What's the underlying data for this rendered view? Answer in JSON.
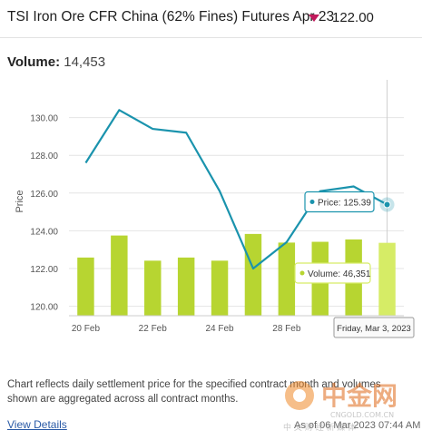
{
  "header": {
    "title": "TSI Iron Ore CFR China (62% Fines) Futures Apr 23",
    "price": "122.00",
    "change_direction_icon": "triangle-down-icon",
    "down_color": "#c0195b"
  },
  "volume": {
    "label": "Volume:",
    "value": "14,453"
  },
  "chart_data": {
    "type": "line+bar",
    "ylabel": "Price",
    "ylim": [
      119.5,
      132.0
    ],
    "yticks": [
      "120.00",
      "122.00",
      "124.00",
      "126.00",
      "128.00",
      "130.00"
    ],
    "x": [
      "Feb 20",
      "Feb 21",
      "Feb 22",
      "Feb 23",
      "Feb 24",
      "Feb 27",
      "Feb 28",
      "Mar 1",
      "Mar 2",
      "Mar 3"
    ],
    "xtick_labels": [
      "20 Feb",
      "22 Feb",
      "24 Feb",
      "28 Feb"
    ],
    "price_series": {
      "name": "Price",
      "values": [
        127.6,
        130.4,
        129.4,
        129.2,
        126.1,
        122.0,
        123.4,
        126.1,
        126.35,
        125.39
      ],
      "color": "#1a93ad"
    },
    "volume_series": {
      "name": "Volume",
      "values": [
        37000,
        51000,
        35000,
        37000,
        35000,
        52000,
        46500,
        47000,
        48500,
        46351
      ],
      "color": "#b7d531",
      "highlight_color": "#d6ec66"
    },
    "tooltip_price": {
      "label": "Price:",
      "value": "125.39"
    },
    "tooltip_volume": {
      "label": "Volume:",
      "value": "46,351"
    },
    "crosshair_date": "Friday, Mar 3, 2023",
    "grid": true
  },
  "footer": {
    "note": "Chart reflects daily settlement price for the specified contract month and volumes shown are aggregated across all contract months.",
    "link": "View Details",
    "asof": "As of 06 Mar 2023 07:44 AM"
  },
  "watermark": {
    "text": "中金网",
    "sub": "CNGOLD.COM.CN",
    "sub2": "中 文 财 经 新 媒 体"
  }
}
